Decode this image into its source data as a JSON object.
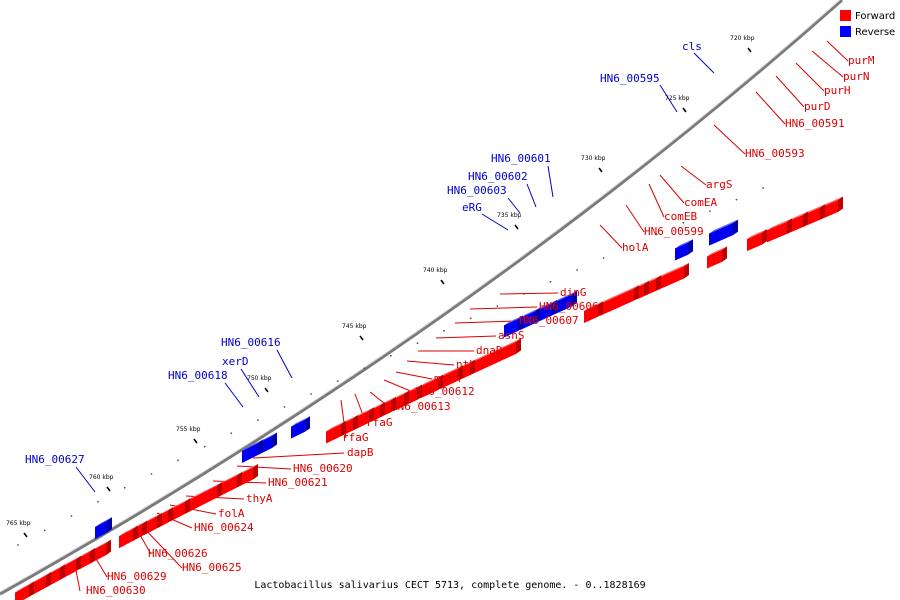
{
  "caption": "Lactobacillus salivarius CECT 5713, complete genome. - 0..1828169",
  "legend": {
    "forward": {
      "label": "Forward",
      "color": "#ff0000"
    },
    "reverse": {
      "label": "Reverse",
      "color": "#0000ff"
    }
  },
  "ticks": [
    "720 kbp",
    "725 kbp",
    "730 kbp",
    "735 kbp",
    "740 kbp",
    "745 kbp",
    "750 kbp",
    "755 kbp",
    "760 kbp",
    "765 kbp"
  ],
  "forward_genes": [
    "purM",
    "purN",
    "purH",
    "purD",
    "HN6_00591",
    "HN6_00593",
    "argS",
    "comEA",
    "comEB",
    "HN6_00599",
    "holA",
    "dinG",
    "HN6_00606",
    "HN6_00607",
    "asnS",
    "dnaD",
    "nth",
    "msrA",
    "HN6_00612",
    "HN6_00613",
    "rfaG",
    "rfaG",
    "dapB",
    "HN6_00620",
    "HN6_00621",
    "thyA",
    "folA",
    "HN6_00624",
    "HN6_00626",
    "HN6_00625",
    "HN6_00629",
    "HN6_00630"
  ],
  "reverse_genes": [
    "cls",
    "HN6_00595",
    "HN6_00601",
    "HN6_00602",
    "HN6_00603",
    "eRG",
    "HN6_00616",
    "xerD",
    "HN6_00618",
    "HN6_00627"
  ]
}
